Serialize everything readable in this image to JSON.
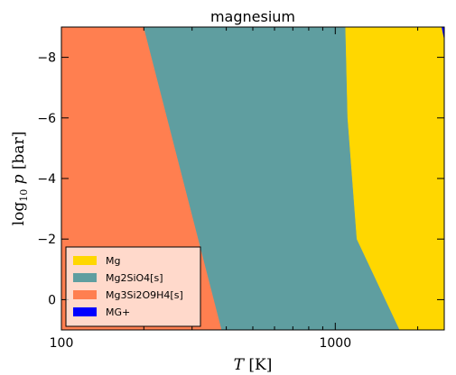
{
  "chart_data": {
    "type": "area",
    "title": "magnesium",
    "xlabel": "T [K]",
    "ylabel": "log10 p [bar]",
    "xscale": "log",
    "xlim": [
      100,
      2500
    ],
    "ylim": [
      1,
      -9
    ],
    "x_ticks": [
      {
        "value": 100,
        "label": "100"
      },
      {
        "value": 1000,
        "label": "1000"
      }
    ],
    "y_ticks": [
      {
        "value": -8,
        "label": "−8"
      },
      {
        "value": -6,
        "label": "−6"
      },
      {
        "value": -4,
        "label": "−4"
      },
      {
        "value": -2,
        "label": "−2"
      },
      {
        "value": 0,
        "label": "0"
      }
    ],
    "regions": [
      {
        "name": "Mg3Si2O9H4[s]",
        "color": "#ff7f50",
        "boundary": [
          [
            100,
            -9
          ],
          [
            200,
            -9
          ],
          [
            385,
            1
          ],
          [
            100,
            1
          ]
        ]
      },
      {
        "name": "Mg2SiO4[s]",
        "color": "#5f9ea0",
        "boundary": [
          [
            200,
            -9
          ],
          [
            1090,
            -9
          ],
          [
            1110,
            -6
          ],
          [
            1200,
            -2
          ],
          [
            1720,
            1
          ],
          [
            385,
            1
          ]
        ]
      },
      {
        "name": "Mg",
        "color": "#ffd700",
        "boundary": [
          [
            1090,
            -9
          ],
          [
            2450,
            -9
          ],
          [
            2500,
            -8.6
          ],
          [
            2500,
            1
          ],
          [
            1720,
            1
          ],
          [
            1200,
            -2
          ],
          [
            1110,
            -6
          ]
        ]
      },
      {
        "name": "MG+",
        "color": "#0000ff",
        "boundary": [
          [
            2450,
            -9
          ],
          [
            2500,
            -9
          ],
          [
            2500,
            -8.6
          ]
        ]
      }
    ],
    "legend": {
      "position": "bottom-left",
      "entries": [
        {
          "label": "Mg",
          "color": "#ffd700"
        },
        {
          "label": "Mg2SiO4[s]",
          "color": "#5f9ea0"
        },
        {
          "label": "Mg3Si2O9H4[s]",
          "color": "#ff7f50"
        },
        {
          "label": "MG+",
          "color": "#0000ff"
        }
      ]
    }
  }
}
